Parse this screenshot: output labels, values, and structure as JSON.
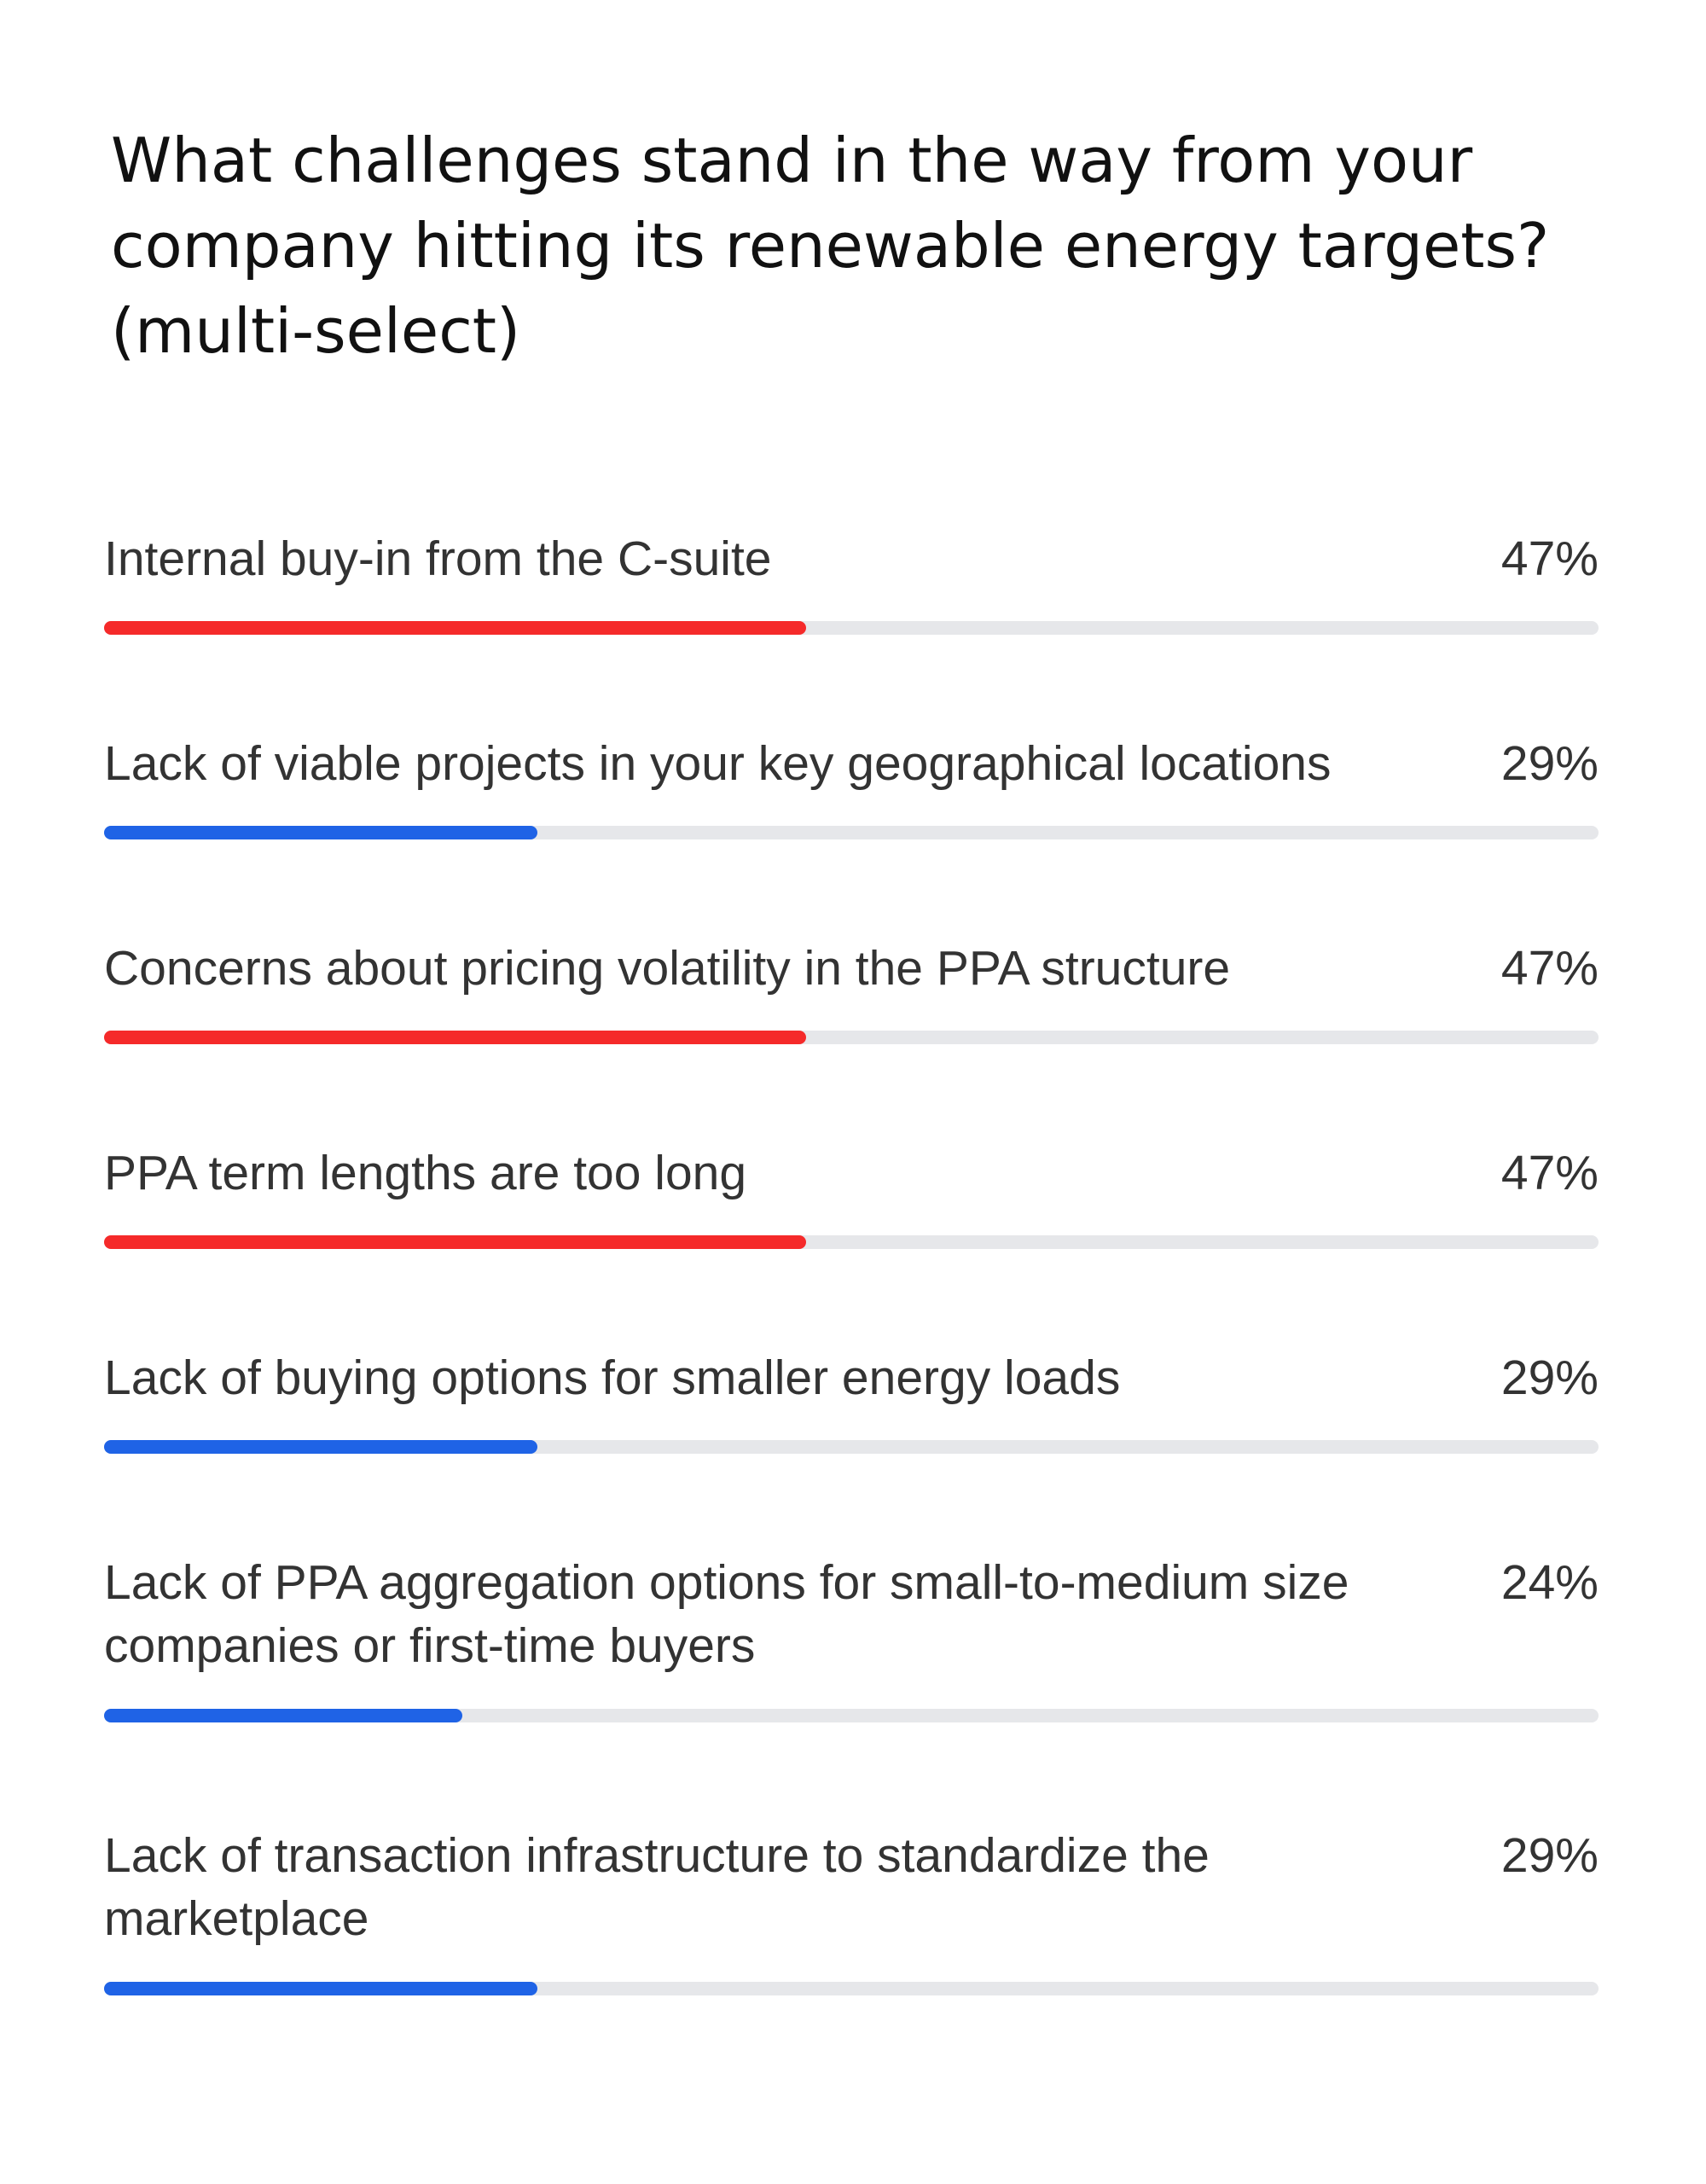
{
  "chart_data": {
    "type": "bar",
    "title": "What challenges stand in the way from your company hitting its renewable energy targets? (multi-select)",
    "categories": [
      "Internal buy-in from the C-suite",
      "Lack of viable projects in your key geographical locations",
      "Concerns about pricing volatility in the PPA structure",
      "PPA term lengths are too long",
      "Lack of buying options for smaller energy loads",
      "Lack of PPA aggregation options for small-to-medium size companies or first-time buyers",
      "Lack of transaction infrastructure to standardize the marketplace"
    ],
    "values": [
      47,
      29,
      47,
      47,
      29,
      24,
      29
    ],
    "value_labels": [
      "47%",
      "29%",
      "47%",
      "47%",
      "29%",
      "24%",
      "29%"
    ],
    "bar_colors": [
      "#f52a2a",
      "#1f63e6",
      "#f52a2a",
      "#f52a2a",
      "#1f63e6",
      "#1f63e6",
      "#1f63e6"
    ],
    "track_color": "#e6e7ea",
    "xlim": [
      0,
      100
    ],
    "grid": false,
    "legend": "none"
  }
}
